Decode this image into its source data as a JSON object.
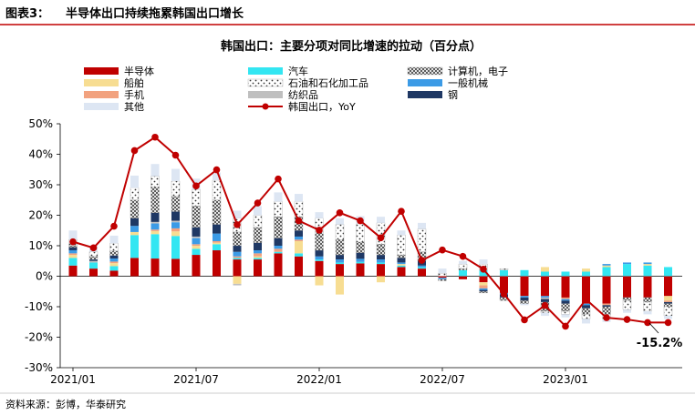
{
  "figure_label": "图表3：",
  "figure_title": "半导体出口持续拖累韩国出口增长",
  "source_note": "资料来源：彭博，华泰研究",
  "colors": {
    "header_rule": "#C00000",
    "semiconductor": "#C00000",
    "auto": "#33E6F2",
    "ships": "#F7DD92",
    "petro": "#D8D8D8",
    "mobile": "#F2A27F",
    "textile": "#BFBFBF",
    "other": "#DDE6F3",
    "machinery": "#3C9BE6",
    "steel": "#1F3864",
    "computer": "#F2F2F2",
    "yoy_line": "#C00000"
  },
  "chart_data": {
    "type": "bar",
    "title": "韩国出口：主要分项对同比增速的拉动（百分点）",
    "x_tick_labels": [
      "2021/01",
      "2021/07",
      "2022/01",
      "2022/07",
      "2023/01"
    ],
    "y_tick_labels": [
      "50%",
      "40%",
      "30%",
      "20%",
      "10%",
      "0%",
      "-10%",
      "-20%",
      "-30%"
    ],
    "ylim": [
      -30,
      50
    ],
    "annotation": "-15.2%",
    "legend": [
      {
        "key": "semiconductor",
        "label": "半导体"
      },
      {
        "key": "auto",
        "label": "汽车"
      },
      {
        "key": "computer",
        "label": "计算机，电子"
      },
      {
        "key": "ships",
        "label": "船舶"
      },
      {
        "key": "petro",
        "label": "石油和石化加工品"
      },
      {
        "key": "machinery",
        "label": "一般机械"
      },
      {
        "key": "mobile",
        "label": "手机"
      },
      {
        "key": "textile",
        "label": "纺织品"
      },
      {
        "key": "steel",
        "label": "钢"
      },
      {
        "key": "other",
        "label": "其他"
      },
      {
        "key": "yoy",
        "label": "韩国出口，YoY"
      }
    ],
    "stack_order": [
      "semiconductor",
      "auto",
      "ships",
      "mobile",
      "machinery",
      "textile",
      "steel",
      "computer",
      "petro",
      "other"
    ],
    "x": [
      "2021/01",
      "2021/02",
      "2021/03",
      "2021/04",
      "2021/05",
      "2021/06",
      "2021/07",
      "2021/08",
      "2021/09",
      "2021/10",
      "2021/11",
      "2021/12",
      "2022/01",
      "2022/02",
      "2022/03",
      "2022/04",
      "2022/05",
      "2022/06",
      "2022/07",
      "2022/08",
      "2022/09",
      "2022/10",
      "2022/11",
      "2022/12",
      "2023/01",
      "2023/02",
      "2023/03",
      "2023/04",
      "2023/05",
      "2023/06"
    ],
    "series": [
      {
        "key": "semiconductor",
        "values": [
          3.5,
          2.5,
          1.8,
          6.0,
          5.8,
          5.7,
          7.0,
          8.5,
          5.5,
          5.5,
          7.5,
          6.5,
          5.0,
          4.0,
          4.2,
          4.0,
          3.0,
          2.5,
          -0.5,
          -1.0,
          -2.0,
          -5.5,
          -6.5,
          -6.5,
          -7.0,
          -9.0,
          -9.0,
          -7.0,
          -7.0,
          -6.5
        ]
      },
      {
        "key": "auto",
        "values": [
          2.5,
          2.0,
          1.5,
          7.5,
          8.0,
          7.5,
          2.0,
          2.0,
          0.5,
          0.5,
          0.5,
          1.0,
          0.5,
          0.5,
          0.5,
          0.5,
          0.5,
          0.5,
          0.0,
          2.0,
          2.0,
          2.0,
          2.0,
          1.5,
          1.5,
          1.5,
          3.0,
          4.0,
          3.5,
          3.0
        ]
      },
      {
        "key": "ships",
        "values": [
          1.0,
          0.0,
          1.0,
          1.0,
          1.0,
          1.5,
          1.0,
          0.5,
          -2.5,
          0.5,
          0.0,
          4.0,
          -3.0,
          -6.0,
          0.0,
          -2.0,
          0.5,
          0.0,
          0.0,
          0.0,
          -1.0,
          0.0,
          0.0,
          1.5,
          0.0,
          1.0,
          0.5,
          0.0,
          0.5,
          -1.5
        ]
      },
      {
        "key": "mobile",
        "values": [
          0.5,
          0.0,
          0.5,
          0.0,
          0.5,
          1.0,
          0.5,
          0.5,
          0.5,
          1.0,
          1.0,
          0.5,
          0.0,
          0.0,
          0.0,
          0.0,
          0.0,
          0.0,
          0.0,
          0.0,
          -1.0,
          0.0,
          0.0,
          0.0,
          -0.5,
          0.0,
          -0.5,
          0.0,
          0.0,
          -0.5
        ]
      },
      {
        "key": "machinery",
        "values": [
          1.0,
          0.0,
          1.0,
          2.0,
          2.0,
          2.0,
          2.0,
          2.5,
          1.5,
          1.0,
          1.0,
          1.0,
          1.0,
          1.0,
          1.0,
          1.0,
          0.5,
          0.5,
          -0.5,
          0.0,
          -0.5,
          -0.5,
          -0.5,
          -0.5,
          -0.5,
          -0.5,
          0.5,
          0.5,
          0.5,
          0.0
        ]
      },
      {
        "key": "textile",
        "values": [
          0.0,
          0.5,
          0.0,
          0.0,
          0.5,
          0.5,
          0.5,
          0.0,
          -0.5,
          0.0,
          0.0,
          0.0,
          0.0,
          0.0,
          0.0,
          0.0,
          0.0,
          0.0,
          0.0,
          0.0,
          0.0,
          0.0,
          0.0,
          -0.5,
          0.0,
          0.0,
          0.0,
          0.0,
          0.0,
          0.0
        ]
      },
      {
        "key": "steel",
        "values": [
          1.0,
          0.5,
          1.0,
          2.5,
          3.0,
          3.0,
          3.0,
          3.0,
          2.0,
          2.5,
          2.5,
          2.0,
          2.0,
          1.5,
          2.0,
          1.5,
          1.5,
          1.5,
          0.0,
          0.0,
          -0.5,
          -1.0,
          -1.0,
          -1.0,
          -1.0,
          -1.0,
          -0.5,
          0.0,
          0.0,
          -0.5
        ]
      },
      {
        "key": "computer",
        "values": [
          0.5,
          1.0,
          1.5,
          6.0,
          8.5,
          5.0,
          7.0,
          8.0,
          4.5,
          5.0,
          7.0,
          4.5,
          6.0,
          5.0,
          3.5,
          3.5,
          1.0,
          3.0,
          -0.5,
          0.5,
          -0.5,
          -1.0,
          -1.0,
          -3.0,
          -2.5,
          -2.0,
          -2.5,
          -1.0,
          -1.5,
          -1.0
        ]
      },
      {
        "key": "petro",
        "values": [
          2.0,
          1.5,
          2.5,
          4.0,
          3.5,
          5.0,
          5.5,
          6.5,
          4.5,
          4.0,
          5.0,
          5.0,
          4.5,
          5.0,
          6.0,
          7.0,
          6.5,
          7.5,
          1.0,
          1.5,
          2.0,
          0.5,
          0.0,
          -0.5,
          -1.0,
          -1.5,
          -1.5,
          -3.0,
          -3.0,
          -3.0
        ]
      },
      {
        "key": "other",
        "values": [
          3.0,
          2.0,
          2.5,
          4.0,
          4.0,
          4.0,
          3.5,
          2.5,
          2.5,
          3.0,
          3.0,
          2.5,
          2.0,
          2.0,
          2.5,
          2.0,
          1.5,
          2.0,
          1.5,
          1.0,
          1.5,
          0.0,
          -0.5,
          -1.0,
          -1.0,
          -1.5,
          -1.0,
          -1.0,
          -1.0,
          -1.0
        ]
      }
    ],
    "line": {
      "key": "yoy",
      "values": [
        11.3,
        9.3,
        16.4,
        41.2,
        45.6,
        39.7,
        29.6,
        34.9,
        16.9,
        24.0,
        31.9,
        18.2,
        15.1,
        20.8,
        18.2,
        12.6,
        21.3,
        5.2,
        8.6,
        6.5,
        2.3,
        -5.8,
        -14.3,
        -9.6,
        -16.4,
        -7.6,
        -13.6,
        -14.2,
        -15.2,
        -15.2
      ]
    }
  }
}
